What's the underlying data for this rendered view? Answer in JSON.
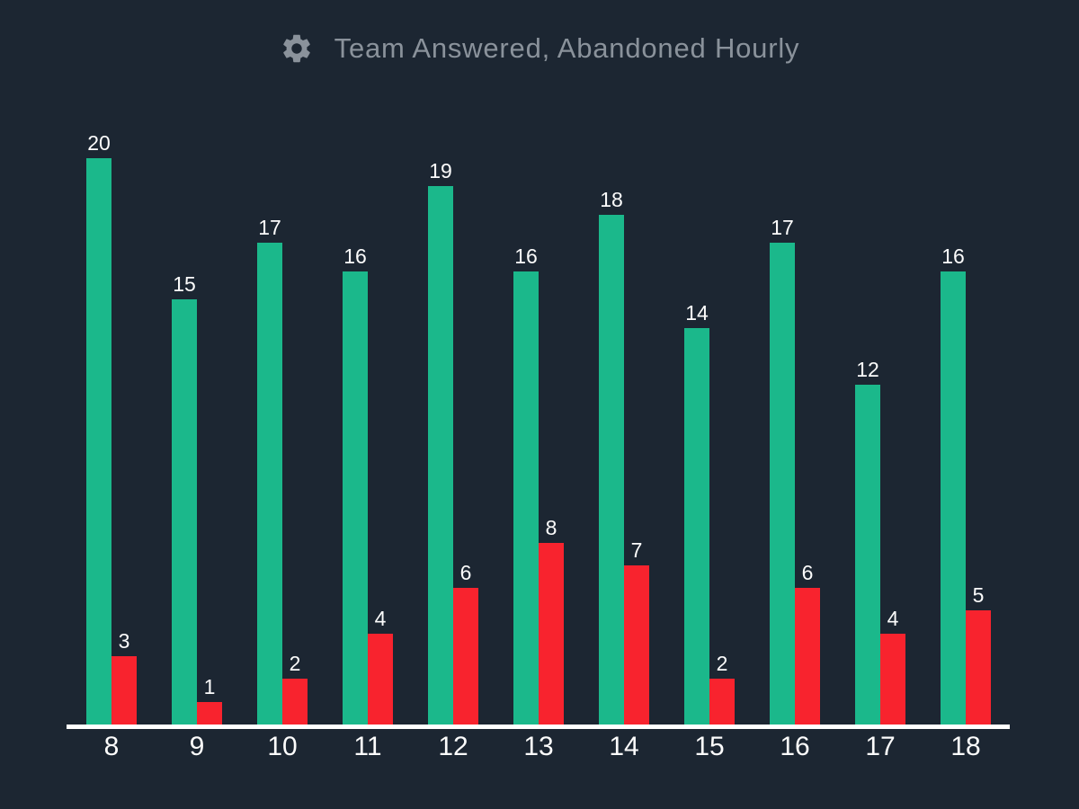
{
  "header": {
    "title": "Team Answered, Abandoned Hourly"
  },
  "colors": {
    "background": "#1c2632",
    "title_text": "#8a929b",
    "value_label_text": "#fcfcfc",
    "axis_line": "#ffffff",
    "answered_green": "#1bb88b",
    "abandoned_red": "#f8232e"
  },
  "chart_data": {
    "type": "bar",
    "title": "Team Answered, Abandoned Hourly",
    "categories": [
      "8",
      "9",
      "10",
      "11",
      "12",
      "13",
      "14",
      "15",
      "16",
      "17",
      "18"
    ],
    "series": [
      {
        "name": "Answered",
        "color": "#1bb88b",
        "values": [
          20,
          15,
          17,
          16,
          19,
          16,
          18,
          14,
          17,
          12,
          16
        ]
      },
      {
        "name": "Abandoned",
        "color": "#f8232e",
        "values": [
          3,
          1,
          2,
          4,
          6,
          8,
          7,
          2,
          6,
          4,
          5
        ]
      }
    ],
    "xlabel": "",
    "ylabel": "",
    "ylim": [
      0,
      20
    ],
    "grid": false,
    "legend": "none",
    "value_labels": true
  }
}
